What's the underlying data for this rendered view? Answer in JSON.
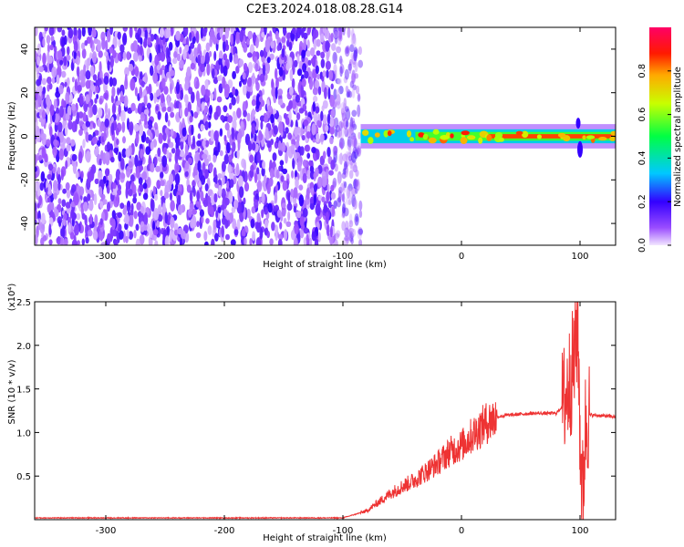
{
  "title": "C2E3.2024.018.08.28.G14",
  "chart_data": [
    {
      "type": "heatmap",
      "xlabel": "Height of straight line (km)",
      "ylabel": "Frequency (Hz)",
      "xlim": [
        -360,
        130
      ],
      "ylim": [
        -50,
        50
      ],
      "xticks": [
        -300,
        -200,
        -100,
        0,
        100
      ],
      "yticks": [
        -40,
        -20,
        0,
        20,
        40
      ],
      "colorbar": {
        "label": "Normalized spectral amplitude",
        "range": [
          0.0,
          1.0
        ],
        "ticks": [
          0.0,
          0.2,
          0.4,
          0.6,
          0.8
        ],
        "colormap": "rainbow (violet-blue-cyan-green-yellow-red-magenta)"
      },
      "regions": [
        {
          "description": "broadband noise, low amplitude",
          "x_range": [
            -360,
            -85
          ],
          "freq_range": [
            -50,
            50
          ],
          "amplitude": 0.05
        },
        {
          "description": "carrier line, high amplitude",
          "x_range": [
            -85,
            130
          ],
          "freq_center": 0,
          "freq_halfwidth": 4,
          "amplitude": 0.85
        }
      ]
    },
    {
      "type": "line",
      "xlabel": "Height of straight line (km)",
      "ylabel": "SNR (10 * v/v)",
      "yscale_label": "(x10⁴)",
      "xlim": [
        -360,
        130
      ],
      "ylim": [
        0,
        2.5
      ],
      "xticks": [
        -300,
        -200,
        -100,
        0,
        100
      ],
      "yticks": [
        0.5,
        1.0,
        1.5,
        2.0,
        2.5
      ],
      "series": [
        {
          "color": "#ee3333",
          "x": [
            -360,
            -300,
            -200,
            -150,
            -100,
            -80,
            -70,
            -60,
            -50,
            -40,
            -30,
            -20,
            -10,
            0,
            10,
            20,
            30,
            40,
            60,
            80,
            85,
            90,
            95,
            98,
            100,
            102,
            105,
            110,
            120,
            130
          ],
          "y": [
            0.02,
            0.02,
            0.02,
            0.02,
            0.02,
            0.1,
            0.2,
            0.3,
            0.38,
            0.45,
            0.55,
            0.65,
            0.78,
            0.85,
            0.98,
            1.1,
            1.18,
            1.2,
            1.22,
            1.22,
            1.3,
            1.5,
            1.8,
            2.3,
            1.0,
            0.2,
            1.2,
            1.2,
            1.19,
            1.18
          ]
        }
      ]
    }
  ]
}
